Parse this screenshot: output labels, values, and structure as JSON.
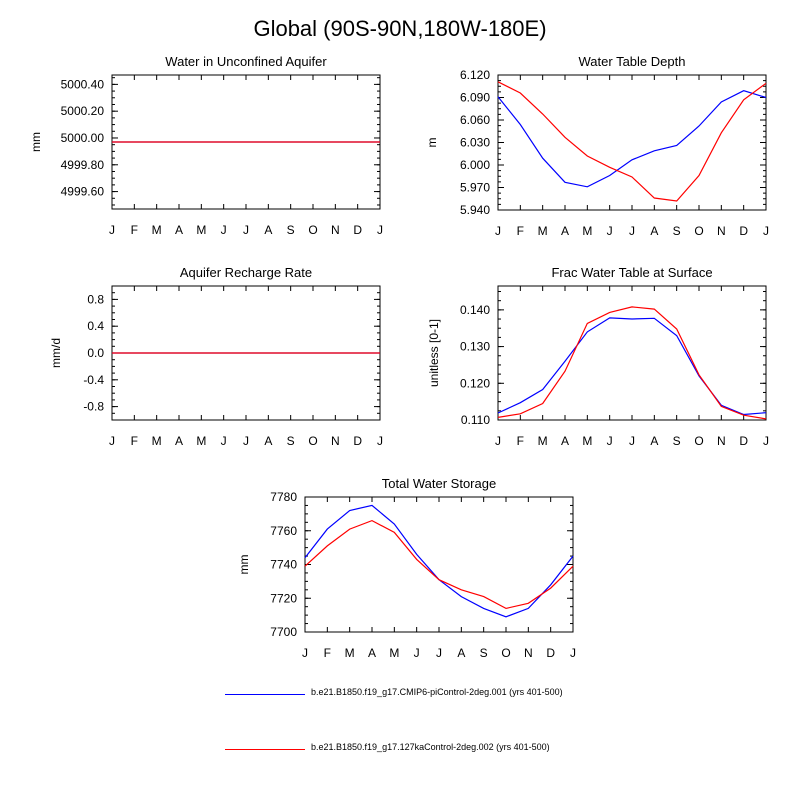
{
  "title": "Global (90S-90N,180W-180E)",
  "colors": {
    "series1": "#0000ff",
    "series2": "#ff0000",
    "axis": "#000000"
  },
  "legend": [
    {
      "label": "b.e21.B1850.f19_g17.CMIP6-piControl-2deg.001 (yrs 401-500)",
      "color": "#0000ff"
    },
    {
      "label": "b.e21.B1850.f19_g17.127kaControl-2deg.002 (yrs 401-500)",
      "color": "#ff0000"
    }
  ],
  "chart_data": [
    {
      "type": "line",
      "title": "Water in Unconfined Aquifer",
      "ylabel": "mm",
      "ylim": [
        4999.47,
        5000.47
      ],
      "yticks": [
        "5000.40",
        "5000.20",
        "5000.00",
        "4999.80",
        "4999.60"
      ],
      "categories": [
        "J",
        "F",
        "M",
        "A",
        "M",
        "J",
        "J",
        "A",
        "S",
        "O",
        "N",
        "D",
        "J"
      ],
      "series": [
        {
          "values": [
            4999.97,
            4999.97,
            4999.97,
            4999.97,
            4999.97,
            4999.97,
            4999.97,
            4999.97,
            4999.97,
            4999.97,
            4999.97,
            4999.97,
            4999.97
          ]
        },
        {
          "values": [
            4999.97,
            4999.97,
            4999.97,
            4999.97,
            4999.97,
            4999.97,
            4999.97,
            4999.97,
            4999.97,
            4999.97,
            4999.97,
            4999.97,
            4999.97
          ]
        }
      ]
    },
    {
      "type": "line",
      "title": "Water Table Depth",
      "ylabel": "m",
      "ylim": [
        5.94,
        6.12
      ],
      "yticks": [
        "6.120",
        "6.090",
        "6.060",
        "6.030",
        "6.000",
        "5.970",
        "5.940"
      ],
      "categories": [
        "J",
        "F",
        "M",
        "A",
        "M",
        "J",
        "J",
        "A",
        "S",
        "O",
        "N",
        "D",
        "J"
      ],
      "series": [
        {
          "values": [
            6.091,
            6.054,
            6.009,
            5.977,
            5.971,
            5.986,
            6.007,
            6.019,
            6.026,
            6.052,
            6.084,
            6.099,
            6.09
          ]
        },
        {
          "values": [
            6.111,
            6.096,
            6.068,
            6.037,
            6.012,
            5.997,
            5.984,
            5.956,
            5.952,
            5.986,
            6.043,
            6.087,
            6.109
          ]
        }
      ]
    },
    {
      "type": "line",
      "title": "Aquifer Recharge Rate",
      "ylabel": "mm/d",
      "ylim": [
        -1.0,
        1.0
      ],
      "yticks": [
        "0.8",
        "0.4",
        "0.0",
        "-0.4",
        "-0.8"
      ],
      "categories": [
        "J",
        "F",
        "M",
        "A",
        "M",
        "J",
        "J",
        "A",
        "S",
        "O",
        "N",
        "D",
        "J"
      ],
      "series": [
        {
          "values": [
            0,
            0,
            0,
            0,
            0,
            0,
            0,
            0,
            0,
            0,
            0,
            0,
            0
          ]
        },
        {
          "values": [
            0,
            0,
            0,
            0,
            0,
            0,
            0,
            0,
            0,
            0,
            0,
            0,
            0
          ]
        }
      ]
    },
    {
      "type": "line",
      "title": "Frac Water Table at Surface",
      "ylabel": "unitless [0-1]",
      "ylim": [
        0.11,
        0.1465
      ],
      "yticks": [
        "0.140",
        "0.130",
        "0.120",
        "0.110"
      ],
      "categories": [
        "J",
        "F",
        "M",
        "A",
        "M",
        "J",
        "J",
        "A",
        "S",
        "O",
        "N",
        "D",
        "J"
      ],
      "series": [
        {
          "values": [
            0.1119,
            0.1147,
            0.1183,
            0.126,
            0.134,
            0.1378,
            0.1375,
            0.1377,
            0.133,
            0.122,
            0.114,
            0.1115,
            0.112
          ]
        },
        {
          "values": [
            0.1107,
            0.1117,
            0.1145,
            0.1233,
            0.1363,
            0.1393,
            0.1408,
            0.1402,
            0.1348,
            0.1223,
            0.1137,
            0.1113,
            0.1103
          ]
        }
      ]
    },
    {
      "type": "line",
      "title": "Total Water Storage",
      "ylabel": "mm",
      "ylim": [
        7700,
        7780
      ],
      "yticks": [
        "7780",
        "7760",
        "7740",
        "7720",
        "7700"
      ],
      "categories": [
        "J",
        "F",
        "M",
        "A",
        "M",
        "J",
        "J",
        "A",
        "S",
        "O",
        "N",
        "D",
        "J"
      ],
      "series": [
        {
          "values": [
            7744,
            7761,
            7772,
            7775,
            7764,
            7746,
            7731,
            7721,
            7714,
            7709,
            7714,
            7728,
            7745
          ]
        },
        {
          "values": [
            7739,
            7751,
            7761,
            7766,
            7759,
            7743,
            7731,
            7725,
            7721,
            7714,
            7717,
            7726,
            7739
          ]
        }
      ]
    }
  ]
}
